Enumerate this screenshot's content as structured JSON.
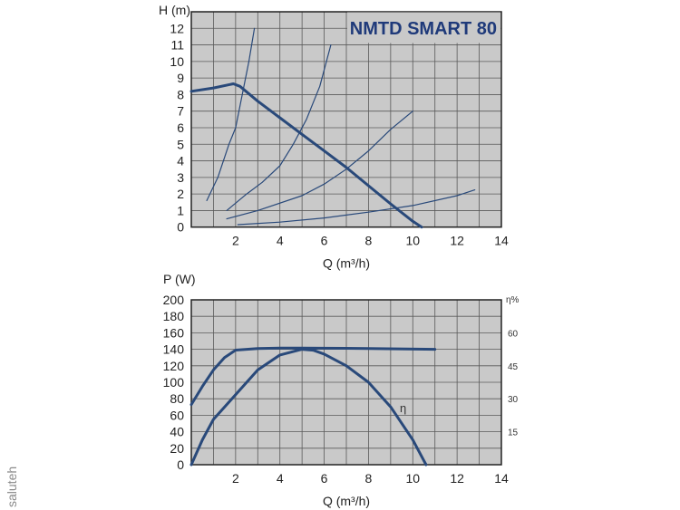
{
  "watermark": "saluteh",
  "colors": {
    "plot_bg": "#c9c9c9",
    "grid": "#5a5a5a",
    "curve": "#29497a",
    "title": "#1f3a7a"
  },
  "chart_data": [
    {
      "type": "line",
      "title": "NMTD SMART 80",
      "xlabel": "Q (m³/h)",
      "ylabel": "H (m)",
      "xlim": [
        0,
        14
      ],
      "ylim": [
        0,
        13
      ],
      "xticks": [
        2,
        4,
        6,
        8,
        10,
        12,
        14
      ],
      "yticks": [
        0,
        1,
        2,
        3,
        4,
        5,
        6,
        7,
        8,
        9,
        10,
        11,
        12
      ],
      "grid": true,
      "series": [
        {
          "role": "pump-curve",
          "points": [
            [
              0,
              8.2
            ],
            [
              1,
              8.4
            ],
            [
              1.9,
              8.65
            ],
            [
              2.2,
              8.5
            ],
            [
              3,
              7.6
            ],
            [
              4,
              6.6
            ],
            [
              5,
              5.6
            ],
            [
              6,
              4.6
            ],
            [
              7,
              3.6
            ],
            [
              8,
              2.5
            ],
            [
              9,
              1.4
            ],
            [
              10,
              0.35
            ],
            [
              10.4,
              0
            ]
          ]
        },
        {
          "role": "system-curve",
          "points": [
            [
              0.7,
              1.6
            ],
            [
              1.2,
              3
            ],
            [
              1.7,
              5
            ],
            [
              2.0,
              6
            ],
            [
              2.3,
              8
            ],
            [
              2.6,
              10
            ],
            [
              2.85,
              12
            ]
          ]
        },
        {
          "role": "system-curve",
          "points": [
            [
              1.6,
              1.0
            ],
            [
              2.5,
              2
            ],
            [
              3.2,
              2.7
            ],
            [
              4,
              3.7
            ],
            [
              4.6,
              5
            ],
            [
              5.2,
              6.5
            ],
            [
              5.8,
              8.5
            ],
            [
              6.3,
              11
            ]
          ]
        },
        {
          "role": "system-curve",
          "points": [
            [
              1.6,
              0.5
            ],
            [
              3,
              1
            ],
            [
              5,
              1.9
            ],
            [
              6,
              2.6
            ],
            [
              7,
              3.5
            ],
            [
              8,
              4.6
            ],
            [
              9,
              5.9
            ],
            [
              10,
              7
            ]
          ]
        },
        {
          "role": "system-curve",
          "points": [
            [
              2.1,
              0.15
            ],
            [
              4,
              0.3
            ],
            [
              6,
              0.55
            ],
            [
              8,
              0.9
            ],
            [
              10,
              1.3
            ],
            [
              12,
              1.9
            ],
            [
              12.8,
              2.25
            ]
          ]
        }
      ]
    },
    {
      "type": "line",
      "xlabel": "Q (m³/h)",
      "ylabel": "P (W)",
      "y2label": "η%",
      "xlim": [
        0,
        14
      ],
      "ylim": [
        0,
        200
      ],
      "y2lim": [
        0,
        75
      ],
      "xticks": [
        2,
        4,
        6,
        8,
        10,
        12,
        14
      ],
      "yticks": [
        0,
        20,
        40,
        60,
        80,
        100,
        120,
        140,
        160,
        180,
        200
      ],
      "y2ticks": [
        15,
        30,
        45,
        60
      ],
      "grid": true,
      "series": [
        {
          "role": "power",
          "axis": "left",
          "points": [
            [
              0,
              73
            ],
            [
              0.5,
              95
            ],
            [
              1,
              115
            ],
            [
              1.5,
              130
            ],
            [
              2,
              139
            ],
            [
              3,
              141
            ],
            [
              4,
              141.5
            ],
            [
              5,
              141.5
            ],
            [
              8,
              141
            ],
            [
              11,
              140
            ]
          ]
        },
        {
          "name": "η",
          "axis": "right",
          "points": [
            [
              0,
              0
            ],
            [
              0.5,
              11.3
            ],
            [
              1,
              20.6
            ],
            [
              2,
              31.9
            ],
            [
              3,
              43.1
            ],
            [
              4,
              49.9
            ],
            [
              5,
              52.5
            ],
            [
              5.5,
              52.1
            ],
            [
              6,
              50.3
            ],
            [
              7,
              45
            ],
            [
              8,
              37.5
            ],
            [
              9,
              26.3
            ],
            [
              10,
              11.3
            ],
            [
              10.6,
              0
            ]
          ]
        }
      ]
    }
  ]
}
